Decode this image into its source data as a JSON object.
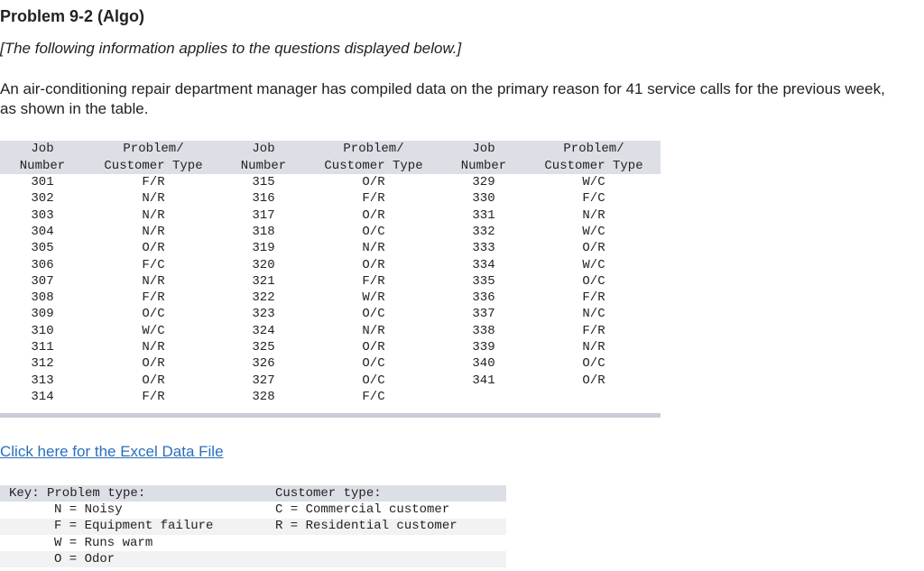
{
  "header": {
    "title": "Problem 9-2 (Algo)",
    "note": "[The following information applies to the questions displayed below.]"
  },
  "intro": "An air-conditioning repair department manager has compiled data on the primary reason for 41 service calls for the previous week, as shown in the table.",
  "table": {
    "header": [
      [
        "Job",
        "Number"
      ],
      [
        "Problem/",
        "Customer Type"
      ],
      [
        "Job",
        "Number"
      ],
      [
        "Problem/",
        "Customer Type"
      ],
      [
        "Job",
        "Number"
      ],
      [
        "Problem/",
        "Customer Type"
      ]
    ],
    "rows": [
      [
        "301",
        "F/R",
        "315",
        "O/R",
        "329",
        "W/C"
      ],
      [
        "302",
        "N/R",
        "316",
        "F/R",
        "330",
        "F/C"
      ],
      [
        "303",
        "N/R",
        "317",
        "O/R",
        "331",
        "N/R"
      ],
      [
        "304",
        "N/R",
        "318",
        "O/C",
        "332",
        "W/C"
      ],
      [
        "305",
        "O/R",
        "319",
        "N/R",
        "333",
        "O/R"
      ],
      [
        "306",
        "F/C",
        "320",
        "O/R",
        "334",
        "W/C"
      ],
      [
        "307",
        "N/R",
        "321",
        "F/R",
        "335",
        "O/C"
      ],
      [
        "308",
        "F/R",
        "322",
        "W/R",
        "336",
        "F/R"
      ],
      [
        "309",
        "O/C",
        "323",
        "O/C",
        "337",
        "N/C"
      ],
      [
        "310",
        "W/C",
        "324",
        "N/R",
        "338",
        "F/R"
      ],
      [
        "311",
        "N/R",
        "325",
        "O/R",
        "339",
        "N/R"
      ],
      [
        "312",
        "O/R",
        "326",
        "O/C",
        "340",
        "O/C"
      ],
      [
        "313",
        "O/R",
        "327",
        "O/C",
        "341",
        "O/R"
      ],
      [
        "314",
        "F/R",
        "328",
        "F/C"
      ]
    ]
  },
  "link": "Click here for the Excel Data File",
  "key": {
    "rows": [
      [
        "Key: Problem type:",
        "Customer type:"
      ],
      [
        "N = Noisy",
        "C = Commercial customer"
      ],
      [
        "F = Equipment failure",
        "R = Residential customer"
      ],
      [
        "W = Runs warm"
      ],
      [
        "O = Odor"
      ]
    ]
  }
}
